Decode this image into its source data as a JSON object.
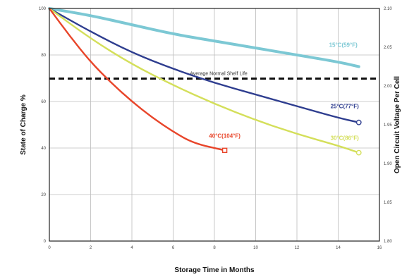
{
  "chart_data": {
    "type": "line",
    "xlabel": "Storage Time in Months",
    "ylabel": "State of Charge %",
    "y2label": "Open Circuit Voltage Per Cell",
    "xlim": [
      0,
      16
    ],
    "ylim": [
      0,
      100
    ],
    "x_ticks": [
      "0",
      "2",
      "4",
      "6",
      "8",
      "10",
      "12",
      "14",
      "16"
    ],
    "y_ticks": [
      "0",
      "20",
      "40",
      "60",
      "80",
      "100"
    ],
    "y2_ticks": [
      "1.80",
      "1.85",
      "1.90",
      "1.95",
      "2.00",
      "2.05",
      "2.10"
    ],
    "grid": true,
    "reference_line": {
      "y": 75,
      "label": "Average Normal Shelf Life"
    },
    "series": [
      {
        "name": "15°C(59°F)",
        "color": "#7cc8d4",
        "marker": "none",
        "x": [
          0,
          2,
          4,
          6,
          8,
          10,
          12,
          14,
          15
        ],
        "y": [
          100,
          97,
          93,
          89,
          86,
          83,
          80,
          77,
          75
        ]
      },
      {
        "name": "25°C(77°F)",
        "color": "#2e3d8f",
        "marker": "circle",
        "x": [
          0,
          2,
          4,
          6,
          8,
          10,
          12,
          14,
          15
        ],
        "y": [
          100,
          90,
          81,
          74,
          68,
          63,
          58,
          53,
          51
        ]
      },
      {
        "name": "30°C(86°F)",
        "color": "#d4df5a",
        "marker": "circle",
        "x": [
          0,
          2,
          4,
          6,
          8,
          10,
          12,
          14,
          15
        ],
        "y": [
          100,
          87,
          76,
          67,
          59,
          52,
          46,
          41,
          38
        ]
      },
      {
        "name": "40°C(104°F)",
        "color": "#e8452a",
        "marker": "square",
        "x": [
          0,
          1,
          2,
          3,
          4,
          5,
          6,
          7,
          8.5
        ],
        "y": [
          100,
          88,
          77,
          68,
          60,
          53,
          47,
          42,
          39
        ]
      }
    ]
  }
}
